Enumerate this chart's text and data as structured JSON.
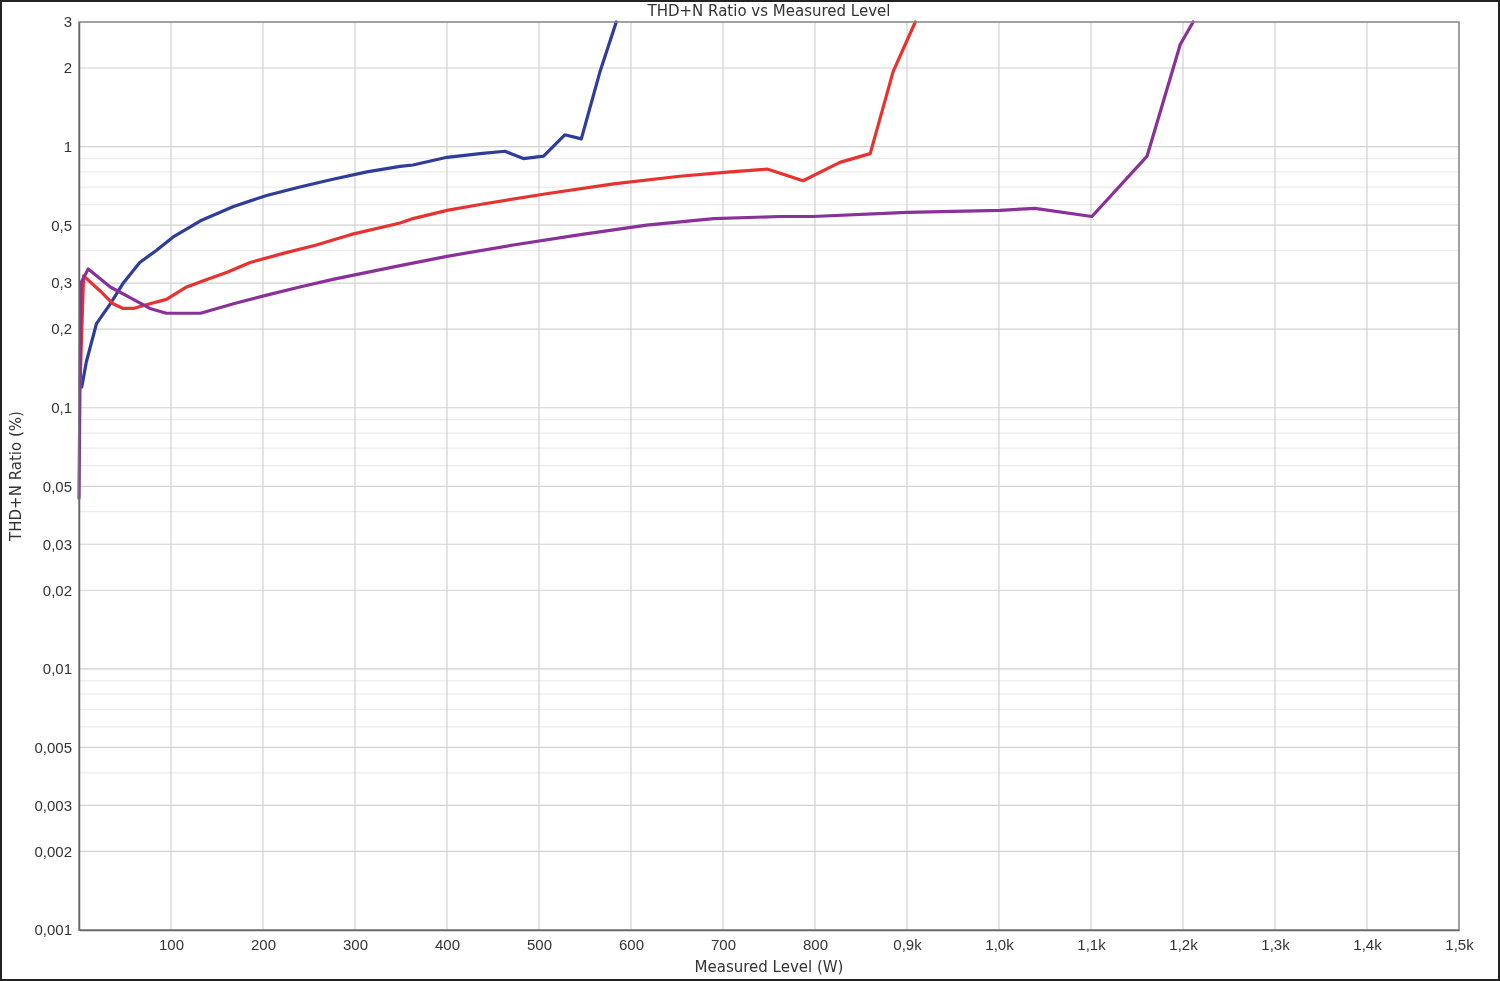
{
  "chart_data": {
    "type": "line",
    "title": "THD+N Ratio vs Measured Level",
    "xlabel": "Measured Level (W)",
    "ylabel": "THD+N Ratio (%)",
    "xlim": [
      0,
      1500
    ],
    "xticks": [
      100,
      200,
      300,
      400,
      500,
      600,
      700,
      800,
      {
        "value": 900,
        "label": "0,9k"
      },
      {
        "value": 1000,
        "label": "1,0k"
      },
      {
        "value": 1100,
        "label": "1,1k"
      },
      {
        "value": 1200,
        "label": "1,2k"
      },
      {
        "value": 1300,
        "label": "1,3k"
      },
      {
        "value": 1400,
        "label": "1,4k"
      },
      {
        "value": 1500,
        "label": "1,5k"
      }
    ],
    "ylim": [
      0.001,
      3
    ],
    "yticks": [
      {
        "value": 0.001,
        "label": "0,001"
      },
      {
        "value": 0.002,
        "label": "0,002"
      },
      {
        "value": 0.003,
        "label": "0,003"
      },
      {
        "value": 0.004,
        "label": null
      },
      {
        "value": 0.005,
        "label": "0,005"
      },
      {
        "value": 0.006,
        "label": null
      },
      {
        "value": 0.007,
        "label": null
      },
      {
        "value": 0.008,
        "label": null
      },
      {
        "value": 0.009,
        "label": null
      },
      {
        "value": 0.01,
        "label": "0,01"
      },
      {
        "value": 0.02,
        "label": "0,02"
      },
      {
        "value": 0.03,
        "label": "0,03"
      },
      {
        "value": 0.04,
        "label": null
      },
      {
        "value": 0.05,
        "label": "0,05"
      },
      {
        "value": 0.06,
        "label": null
      },
      {
        "value": 0.07,
        "label": null
      },
      {
        "value": 0.08,
        "label": null
      },
      {
        "value": 0.09,
        "label": null
      },
      {
        "value": 0.1,
        "label": "0,1"
      },
      {
        "value": 0.2,
        "label": "0,2"
      },
      {
        "value": 0.3,
        "label": "0,3"
      },
      {
        "value": 0.4,
        "label": null
      },
      {
        "value": 0.5,
        "label": "0,5"
      },
      {
        "value": 0.6,
        "label": null
      },
      {
        "value": 0.7,
        "label": null
      },
      {
        "value": 0.8,
        "label": null
      },
      {
        "value": 0.9,
        "label": null
      },
      1,
      2,
      3
    ],
    "log": "y",
    "grid": true,
    "line_style": "solid",
    "series": [
      {
        "color": "#2e3c9c",
        "x": [
          3,
          8,
          19,
          34,
          48,
          66,
          84,
          102,
          132,
          168,
          204,
          240,
          276,
          313,
          349,
          363,
          400,
          436,
          463,
          483,
          505,
          528,
          546,
          566,
          584
        ],
        "values": [
          0.12,
          0.15,
          0.21,
          0.25,
          0.3,
          0.36,
          0.4,
          0.45,
          0.52,
          0.59,
          0.65,
          0.7,
          0.75,
          0.8,
          0.84,
          0.85,
          0.91,
          0.94,
          0.96,
          0.9,
          0.92,
          1.11,
          1.07,
          1.92,
          3
        ]
      },
      {
        "color": "#e8322f",
        "x": [
          1,
          5,
          23,
          37,
          48,
          59,
          77,
          95,
          117,
          139,
          161,
          186,
          222,
          258,
          295,
          349,
          363,
          400,
          436,
          508,
          581,
          653,
          708,
          748,
          787,
          827,
          860,
          885,
          909
        ],
        "values": [
          0.12,
          0.32,
          0.28,
          0.25,
          0.24,
          0.24,
          0.25,
          0.26,
          0.29,
          0.31,
          0.33,
          0.36,
          0.39,
          0.42,
          0.46,
          0.51,
          0.53,
          0.57,
          0.6,
          0.66,
          0.72,
          0.77,
          0.8,
          0.82,
          0.74,
          0.87,
          0.94,
          1.94,
          3
        ]
      },
      {
        "color": "#8a3099",
        "x": [
          0,
          2,
          10,
          34,
          59,
          77,
          95,
          132,
          168,
          204,
          240,
          276,
          313,
          349,
          400,
          472,
          545,
          617,
          690,
          762,
          798,
          900,
          1001,
          1039,
          1101,
          1161,
          1197,
          1211
        ],
        "values": [
          0.045,
          0.3,
          0.34,
          0.29,
          0.26,
          0.24,
          0.23,
          0.23,
          0.25,
          0.27,
          0.29,
          0.31,
          0.33,
          0.35,
          0.38,
          0.42,
          0.46,
          0.5,
          0.53,
          0.54,
          0.54,
          0.56,
          0.57,
          0.58,
          0.54,
          0.92,
          2.46,
          3
        ]
      }
    ]
  }
}
